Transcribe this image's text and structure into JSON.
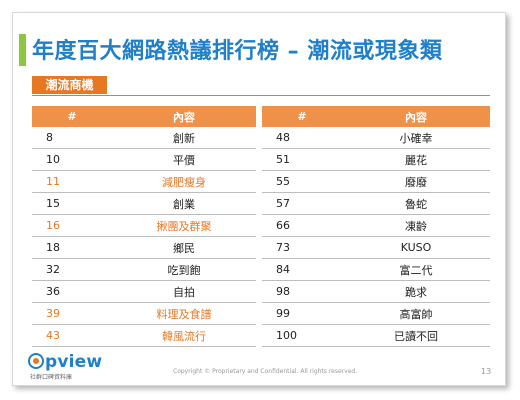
{
  "title": "年度百大網路熱議排行榜 – 潮流或現象類",
  "section_tag": "潮流商機",
  "colors": {
    "title": "#1f7fc9",
    "accent_green": "#8dc63f",
    "accent_orange": "#e87722",
    "header_bg": "#f0914a"
  },
  "table_left": {
    "headers": [
      "#",
      "內容"
    ],
    "rows": [
      {
        "num": "8",
        "text": "創新",
        "highlight": false
      },
      {
        "num": "10",
        "text": "平價",
        "highlight": false
      },
      {
        "num": "11",
        "text": "減肥瘦身",
        "highlight": true
      },
      {
        "num": "15",
        "text": "創業",
        "highlight": false
      },
      {
        "num": "16",
        "text": "揪團及群聚",
        "highlight": true
      },
      {
        "num": "18",
        "text": "鄉民",
        "highlight": false
      },
      {
        "num": "32",
        "text": "吃到飽",
        "highlight": false
      },
      {
        "num": "36",
        "text": "自拍",
        "highlight": false
      },
      {
        "num": "39",
        "text": "料理及食譜",
        "highlight": true
      },
      {
        "num": "43",
        "text": "韓風流行",
        "highlight": true
      }
    ]
  },
  "table_right": {
    "headers": [
      "#",
      "內容"
    ],
    "rows": [
      {
        "num": "48",
        "text": "小確幸",
        "highlight": false
      },
      {
        "num": "51",
        "text": "麗花",
        "highlight": false
      },
      {
        "num": "55",
        "text": "廢廢",
        "highlight": false
      },
      {
        "num": "57",
        "text": "魯蛇",
        "highlight": false
      },
      {
        "num": "66",
        "text": "凍齡",
        "highlight": false
      },
      {
        "num": "73",
        "text": "KUSO",
        "highlight": false
      },
      {
        "num": "84",
        "text": "富二代",
        "highlight": false
      },
      {
        "num": "98",
        "text": "跪求",
        "highlight": false
      },
      {
        "num": "99",
        "text": "高富帥",
        "highlight": false
      },
      {
        "num": "100",
        "text": "已讀不回",
        "highlight": false
      }
    ]
  },
  "footer": {
    "logo_text": "pview",
    "logo_sub": "社群口碑資料庫",
    "copyright": "Copyright © Proprietary and Confidential. All rights reserved.",
    "page_number": "13"
  }
}
